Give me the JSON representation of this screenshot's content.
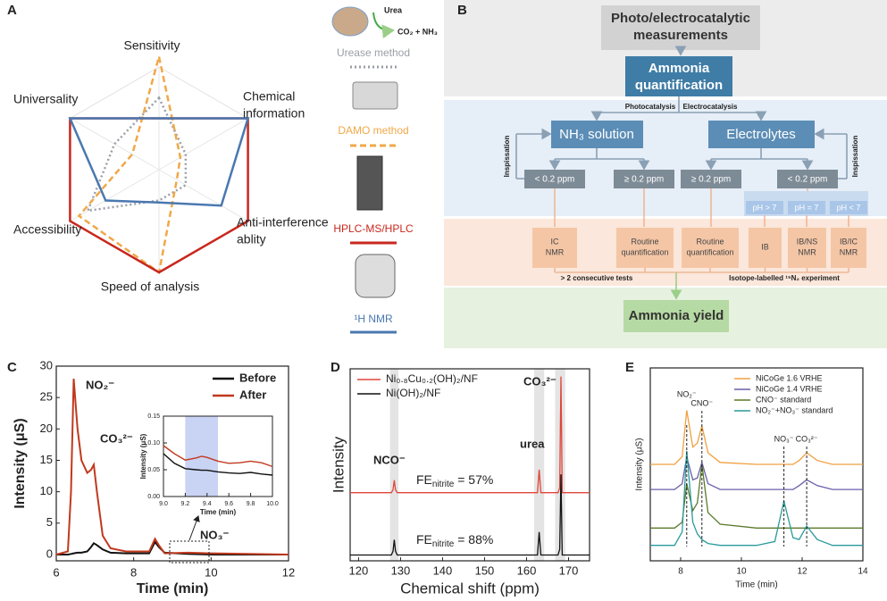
{
  "chart_data": [
    {
      "panel": "A",
      "type": "radar",
      "axes": [
        "Sensitivity",
        [
          "Chemical",
          "information"
        ],
        [
          "Anti-interference",
          "ablity"
        ],
        "Speed of analysis",
        "Accessibility",
        "Universality"
      ],
      "rlim": [
        0,
        5
      ],
      "icon_texts": [
        "Urea",
        "CO₂ + NH₃"
      ],
      "series": [
        {
          "name": "Urease method",
          "color": "#9a9ea6",
          "dash": "dotted",
          "values": [
            3.5,
            1.5,
            1.5,
            1.5,
            4,
            2.5
          ]
        },
        {
          "name": "DAMO method",
          "color": "#f0a848",
          "dash": "dashed",
          "values": [
            5.5,
            1.2,
            1.0,
            5,
            4.5,
            1.5
          ]
        },
        {
          "name": "HPLC-MS/HPLC",
          "color": "#c8281e",
          "dash": "solid",
          "values": [
            2.5,
            5,
            5,
            5,
            5,
            5
          ]
        },
        {
          "name": "¹H NMR",
          "color": "#4a78b0",
          "dash": "solid",
          "values": [
            2.5,
            5,
            3.5,
            1.6,
            3,
            5
          ]
        }
      ]
    },
    {
      "panel": "C",
      "type": "line",
      "xlabel": "Time (min)",
      "ylabel": "Intensity (μS)",
      "xlim": [
        6,
        12
      ],
      "ylim": [
        -1,
        30
      ],
      "xticks": [
        6,
        8,
        10,
        12
      ],
      "yticks": [
        0,
        5,
        10,
        15,
        20,
        25,
        30
      ],
      "x": [
        6,
        6.3,
        6.38,
        6.45,
        6.55,
        6.65,
        6.8,
        6.9,
        6.97,
        7.05,
        7.2,
        7.4,
        7.8,
        8.4,
        8.55,
        8.65,
        8.8,
        9.4,
        10,
        12
      ],
      "series": [
        {
          "name": "Before",
          "color": "#111111",
          "values": [
            0,
            0,
            0.1,
            0.2,
            0.3,
            0.3,
            0.5,
            1.2,
            1.8,
            1.5,
            0.8,
            0.3,
            0.2,
            0.2,
            2,
            1.2,
            0.3,
            0.1,
            0,
            0
          ]
        },
        {
          "name": "After",
          "color": "#c0391e",
          "values": [
            0,
            0.5,
            10,
            28,
            20,
            15,
            13,
            13.5,
            14.3,
            10,
            3,
            1,
            0.5,
            0.5,
            2.5,
            1.5,
            0.2,
            0.3,
            0.2,
            0
          ]
        }
      ],
      "annotations": [
        "NO₂⁻",
        "CO₃²⁻",
        "NO₃⁻"
      ],
      "inset": {
        "xlabel": "Time (min)",
        "ylabel": "Intensity (μS)",
        "xlim": [
          9,
          10
        ],
        "ylim": [
          0,
          0.15
        ],
        "xticks": [
          {
            "value": 9,
            "label": "9.0"
          },
          9.2,
          9.4,
          9.6,
          9.8,
          {
            "value": 10,
            "label": "10.0"
          }
        ],
        "yticks": [
          {
            "value": 0,
            "label": "0.00"
          },
          0.05,
          {
            "value": 0.1,
            "label": "0.10"
          },
          0.15
        ],
        "highlight": [
          9.2,
          9.5
        ],
        "x": [
          9.0,
          9.1,
          9.2,
          9.3,
          9.35,
          9.4,
          9.5,
          9.6,
          9.7,
          9.8,
          9.9,
          10.0
        ],
        "series": [
          {
            "color": "#111111",
            "values": [
              0.08,
              0.062,
              0.052,
              0.05,
              0.049,
              0.049,
              0.046,
              0.044,
              0.043,
              0.045,
              0.042,
              0.04
            ]
          },
          {
            "color": "#c0391e",
            "values": [
              0.095,
              0.08,
              0.068,
              0.072,
              0.075,
              0.073,
              0.066,
              0.062,
              0.063,
              0.066,
              0.063,
              0.056
            ]
          }
        ]
      }
    },
    {
      "panel": "D",
      "type": "line",
      "xlabel": "Chemical shift (ppm)",
      "ylabel": "Intensity",
      "xlim": [
        118,
        175
      ],
      "ylim": [
        0,
        10
      ],
      "xticks": [
        120,
        130,
        140,
        150,
        160,
        170
      ],
      "highlights": [
        [
          127.5,
          129.5
        ],
        [
          161.8,
          164.2
        ],
        [
          166.8,
          169.2
        ]
      ],
      "x": [
        118,
        127.8,
        128.2,
        128.5,
        128.8,
        129.2,
        160,
        162.6,
        163,
        163.4,
        167.5,
        167.9,
        168.2,
        168.5,
        175
      ],
      "series": [
        {
          "name": "Ni₀.₈Cu₀.₂(OH)₂/NF",
          "color": "#e0463a",
          "values": [
            3.55,
            3.55,
            3.7,
            4.2,
            3.7,
            3.55,
            3.55,
            3.55,
            4.75,
            3.55,
            3.55,
            3.8,
            9.6,
            3.55,
            3.55
          ]
        },
        {
          "name": "Ni(OH)₂/NF",
          "color": "#111111",
          "values": [
            0.3,
            0.3,
            0.5,
            1.1,
            0.5,
            0.3,
            0.3,
            0.3,
            1.5,
            0.3,
            0.3,
            0.6,
            4.5,
            0.3,
            0.3
          ]
        }
      ],
      "annotations": [
        "NCO⁻",
        "urea",
        "CO₃²⁻"
      ],
      "fe_labels": [
        {
          "main": "FE",
          "sub": "nitrite",
          "rest": " = 57%"
        },
        {
          "main": "FE",
          "sub": "nitrite",
          "rest": " = 88%"
        }
      ]
    },
    {
      "panel": "E",
      "type": "line",
      "xlabel": "Time (min)",
      "ylabel": "Intensity (μS)",
      "xlim": [
        7,
        14
      ],
      "ylim": [
        0,
        10
      ],
      "xticks": [
        8,
        10,
        12,
        14
      ],
      "x": [
        7,
        7.8,
        8.05,
        8.2,
        8.4,
        8.55,
        8.7,
        8.9,
        9.3,
        10.5,
        11.1,
        11.4,
        11.7,
        11.9,
        12.15,
        12.5,
        13,
        14
      ],
      "series": [
        {
          "name": "NiCoGe 1.6 VRHE",
          "color": "#f0a040",
          "values": [
            5.0,
            5.0,
            5.4,
            7.8,
            5.9,
            6.1,
            7.0,
            5.6,
            5.1,
            5.0,
            5.0,
            5.0,
            5.0,
            5.2,
            5.6,
            5.2,
            5.0,
            5.0
          ]
        },
        {
          "name": "NiCoGe 1.4 VRHE",
          "color": "#6a5fa8",
          "values": [
            3.7,
            3.7,
            4.0,
            5.4,
            4.2,
            4.3,
            5.1,
            4.0,
            3.7,
            3.7,
            3.7,
            3.7,
            3.7,
            3.9,
            4.2,
            3.9,
            3.7,
            3.7
          ]
        },
        {
          "name": "CNO⁻ standard",
          "color": "#5a7a2a",
          "values": [
            1.7,
            1.7,
            2.0,
            4.0,
            2.6,
            3.0,
            5.0,
            2.5,
            1.9,
            1.7,
            1.7,
            1.7,
            1.7,
            1.7,
            1.7,
            1.7,
            1.7,
            1.7
          ]
        },
        {
          "name": "NO₂⁻+NO₃⁻ standard",
          "color": "#2a9a9a",
          "values": [
            0.8,
            0.8,
            1.5,
            5.7,
            2.0,
            1.4,
            1.1,
            0.9,
            0.8,
            0.8,
            1.0,
            3.1,
            1.2,
            1.1,
            1.8,
            1.1,
            0.8,
            0.8
          ]
        }
      ],
      "peak_labels": [
        "NO₂⁻",
        "CNO⁻",
        "NO₃⁻",
        "CO₃²⁻"
      ],
      "peak_positions": [
        8.2,
        8.7,
        11.4,
        12.15
      ]
    }
  ],
  "diagram": {
    "panel": "B",
    "top": [
      "Photo/electrocatalytic",
      "measurements"
    ],
    "quant": [
      "Ammonia",
      "quantification"
    ],
    "branches": [
      "Photocatalysis",
      "Electrocatalysis"
    ],
    "media": [
      "NH₃ solution",
      "Electrolytes"
    ],
    "inspissation": [
      "Inspissation",
      "Inspissation"
    ],
    "thresholds": [
      "< 0.2 ppm",
      "≥ 0.2 ppm",
      "≥ 0.2 ppm",
      "< 0.2 ppm"
    ],
    "ph": [
      "pH > 7",
      "pH = 7",
      "pH < 7"
    ],
    "methods": [
      [
        "IC",
        "NMR"
      ],
      [
        "Routine",
        "quantification"
      ],
      [
        "Routine",
        "quantification"
      ],
      [
        "IB"
      ],
      [
        "IB/NS",
        "NMR"
      ],
      [
        "IB/IC",
        "NMR"
      ]
    ],
    "notes": [
      "> 2 consecutive tests",
      "Isotope-labelled ¹⁵N₂ experiment"
    ],
    "result": "Ammonia yield"
  }
}
